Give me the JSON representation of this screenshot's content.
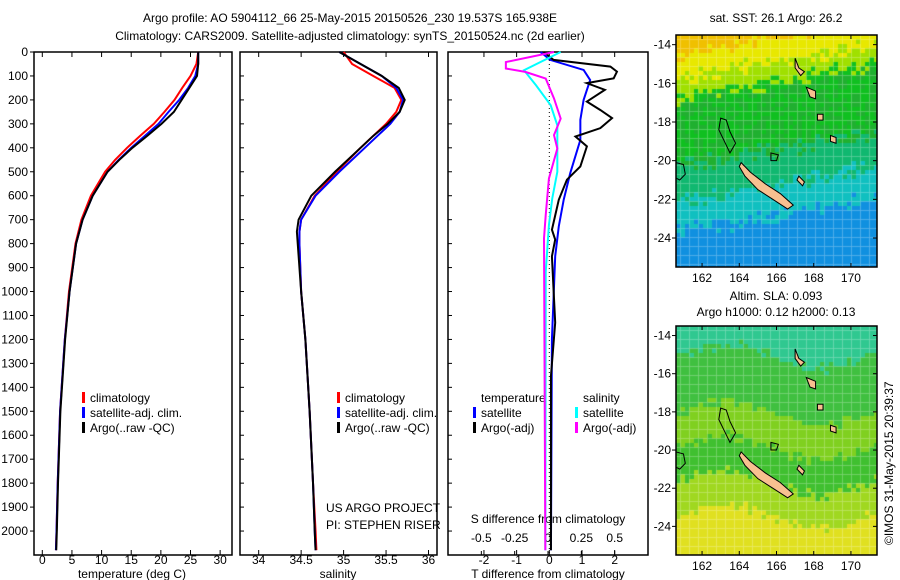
{
  "title": {
    "line1": "Argo profile: AO 5904112_66 25-May-2015 20150526_230 19.537S 165.938E",
    "line2": "Climatology: CARS2009. Satellite-adjusted climatology: synTS_20150524.nc (2d earlier)"
  },
  "credit": "©IMOS 31-May-2015 20:39:37",
  "project": {
    "line1": "US ARGO PROJECT",
    "line2": "PI: STEPHEN RISER"
  },
  "colors": {
    "climatology": "#ff0000",
    "satellite": "#0000ff",
    "argo": "#000000",
    "sal_sat": "#00ffff",
    "sal_argo": "#ff00ff"
  },
  "chart_data": [
    {
      "type": "line",
      "name": "temperature",
      "xlabel": "temperature (deg C)",
      "xlim": [
        -1.4,
        32
      ],
      "ylim": [
        0,
        2100
      ],
      "xticks": [
        0,
        5,
        10,
        15,
        20,
        25,
        30
      ],
      "yticks": [
        0,
        100,
        200,
        300,
        400,
        500,
        600,
        700,
        800,
        900,
        1000,
        1100,
        1200,
        1300,
        1400,
        1500,
        1600,
        1700,
        1800,
        1900,
        2000
      ],
      "legend": [
        "climatology",
        "satellite-adj. clim.",
        "Argo(..raw -QC)"
      ],
      "depth": [
        0,
        50,
        100,
        150,
        200,
        250,
        300,
        350,
        400,
        450,
        500,
        600,
        700,
        800,
        1000,
        1200,
        1500,
        1800,
        2000,
        2080
      ],
      "series": [
        {
          "name": "climatology",
          "values": [
            26.3,
            26.0,
            25.0,
            23.6,
            22.3,
            20.6,
            18.8,
            16.5,
            14.3,
            12.3,
            10.6,
            8.2,
            6.6,
            5.6,
            4.5,
            3.8,
            3.0,
            2.6,
            2.4,
            2.3
          ]
        },
        {
          "name": "satellite-adj. clim.",
          "values": [
            26.3,
            26.3,
            25.8,
            24.6,
            23.1,
            21.3,
            19.6,
            17.3,
            15.0,
            12.9,
            11.0,
            8.5,
            6.8,
            5.7,
            4.6,
            3.8,
            3.0,
            2.6,
            2.4,
            2.3
          ]
        },
        {
          "name": "Argo",
          "values": [
            26.3,
            26.3,
            26.1,
            24.8,
            23.5,
            22.2,
            20.1,
            17.7,
            15.2,
            13.0,
            11.0,
            8.5,
            6.8,
            5.7,
            4.6,
            3.85,
            3.05,
            2.65,
            2.45,
            2.35
          ]
        }
      ]
    },
    {
      "type": "line",
      "name": "salinity",
      "xlabel": "salinity",
      "xlim": [
        33.78,
        36.1
      ],
      "ylim": [
        0,
        2100
      ],
      "xticks": [
        34,
        34.5,
        35,
        35.5,
        36
      ],
      "legend": [
        "climatology",
        "satellite-adj. clim.",
        "Argo(..raw -QC)"
      ],
      "depth": [
        0,
        50,
        100,
        150,
        200,
        250,
        300,
        350,
        400,
        500,
        600,
        700,
        750,
        800,
        1000,
        1200,
        1500,
        1800,
        2000,
        2080
      ],
      "series": [
        {
          "name": "climatology",
          "values": [
            35.0,
            35.1,
            35.35,
            35.6,
            35.68,
            35.62,
            35.5,
            35.35,
            35.2,
            34.92,
            34.66,
            34.5,
            34.48,
            34.48,
            34.5,
            34.55,
            34.6,
            34.64,
            34.67,
            34.68
          ]
        },
        {
          "name": "satellite-adj. clim.",
          "values": [
            34.95,
            35.2,
            35.45,
            35.62,
            35.7,
            35.66,
            35.55,
            35.4,
            35.25,
            34.95,
            34.67,
            34.5,
            34.48,
            34.48,
            34.5,
            34.55,
            34.6,
            34.64,
            34.66,
            34.67
          ]
        },
        {
          "name": "Argo",
          "values": [
            34.95,
            35.2,
            35.45,
            35.65,
            35.72,
            35.66,
            35.52,
            35.35,
            35.2,
            34.9,
            34.62,
            34.47,
            34.45,
            34.46,
            34.5,
            34.55,
            34.6,
            34.64,
            34.66,
            34.67
          ]
        }
      ]
    },
    {
      "type": "line",
      "name": "difference",
      "xlabel": "T difference from climatology",
      "x2label": "S difference from climatology",
      "xlim": [
        -3.1,
        3.02
      ],
      "x2lim": [
        -0.75,
        0.75
      ],
      "ylim": [
        0,
        2100
      ],
      "xticks": [
        -2,
        -1,
        0,
        1,
        2
      ],
      "x2ticks": [
        "-0.5",
        "-0.25",
        "0",
        "0.25",
        "0.5"
      ],
      "legend": {
        "temperature": "temperature",
        "salinity": "salinity",
        "sat": "satellite",
        "argo": "Argo(-adj)"
      },
      "series": [
        {
          "name": "T satellite",
          "axis": "T",
          "depth": [
            0,
            33,
            75,
            117,
            200,
            283,
            367,
            506,
            617,
            728,
            853,
            1200,
            2080
          ],
          "values": [
            -0.27,
            0.03,
            1.05,
            1.25,
            1.05,
            0.95,
            0.95,
            0.64,
            0.44,
            0.29,
            0.18,
            0.08,
            0.05
          ]
        },
        {
          "name": "T Argo",
          "axis": "T",
          "depth": [
            0,
            33,
            61,
            82,
            110,
            130,
            158,
            207,
            242,
            276,
            318,
            353,
            394,
            478,
            533,
            617,
            742,
            783,
            853,
            1130,
            1353,
            2080
          ],
          "values": [
            -0.17,
            0.13,
            1.87,
            2.07,
            1.97,
            1.15,
            1.7,
            1.15,
            1.56,
            1.92,
            1.56,
            0.8,
            1.15,
            0.95,
            0.54,
            0.29,
            0.08,
            0.18,
            0.08,
            0.18,
            0.05,
            0.05
          ]
        },
        {
          "name": "S satellite",
          "axis": "S",
          "depth": [
            0,
            76,
            139,
            222,
            306,
            500,
            611,
            722,
            917,
            2080
          ],
          "values": [
            0.095,
            -0.18,
            -0.09,
            0.02,
            0.07,
            0.07,
            0.032,
            0.007,
            -0.017,
            -0.02
          ]
        },
        {
          "name": "S Argo",
          "axis": "S",
          "depth": [
            0,
            42,
            69,
            83,
            111,
            194,
            278,
            347,
            403,
            528,
            680,
            778,
            2080
          ],
          "values": [
            0.045,
            -0.316,
            -0.316,
            -0.17,
            -0.017,
            0.045,
            0.095,
            0.045,
            0.07,
            0.007,
            -0.017,
            -0.03,
            -0.02
          ]
        }
      ]
    },
    {
      "type": "heatmap",
      "name": "sst-map",
      "title": "sat. SST: 26.1 Argo: 26.2",
      "xlim": [
        160.6,
        171.4
      ],
      "ylim": [
        -25.5,
        -13.5
      ],
      "xticks": [
        162,
        164,
        166,
        168,
        170
      ],
      "yticks": [
        -14,
        -16,
        -18,
        -20,
        -22,
        -24
      ]
    },
    {
      "type": "heatmap",
      "name": "sla-map",
      "title1": "Altim. SLA: 0.093",
      "title2": "Argo h1000: 0.12 h2000: 0.13",
      "xlim": [
        160.6,
        171.4
      ],
      "ylim": [
        -25.5,
        -13.5
      ],
      "xticks": [
        162,
        164,
        166,
        168,
        170
      ],
      "yticks": [
        -14,
        -16,
        -18,
        -20,
        -22,
        -24
      ]
    }
  ],
  "coast": [
    {
      "land": true,
      "pts": [
        [
          164.1,
          -20.1
        ],
        [
          164.6,
          -20.6
        ],
        [
          165.4,
          -21.2
        ],
        [
          166.2,
          -21.7
        ],
        [
          166.9,
          -22.3
        ],
        [
          166.6,
          -22.5
        ],
        [
          165.8,
          -22.0
        ],
        [
          165.0,
          -21.5
        ],
        [
          164.3,
          -20.8
        ],
        [
          164.0,
          -20.3
        ]
      ]
    },
    {
      "land": true,
      "pts": [
        [
          167.0,
          -14.7
        ],
        [
          167.2,
          -15.2
        ],
        [
          167.5,
          -15.4
        ],
        [
          167.3,
          -15.6
        ],
        [
          167.0,
          -15.2
        ]
      ]
    },
    {
      "land": true,
      "pts": [
        [
          167.6,
          -16.2
        ],
        [
          168.1,
          -16.4
        ],
        [
          168.1,
          -16.8
        ],
        [
          167.8,
          -16.7
        ]
      ]
    },
    {
      "land": true,
      "pts": [
        [
          168.2,
          -17.6
        ],
        [
          168.5,
          -17.6
        ],
        [
          168.5,
          -17.9
        ],
        [
          168.2,
          -17.9
        ]
      ]
    },
    {
      "land": true,
      "pts": [
        [
          168.9,
          -18.7
        ],
        [
          169.2,
          -18.8
        ],
        [
          169.2,
          -19.1
        ],
        [
          168.9,
          -19.0
        ]
      ]
    },
    {
      "land": true,
      "pts": [
        [
          167.2,
          -20.8
        ],
        [
          167.5,
          -21.1
        ],
        [
          167.4,
          -21.3
        ],
        [
          167.1,
          -21.0
        ]
      ]
    },
    {
      "land": false,
      "pts": [
        [
          163.0,
          -17.8
        ],
        [
          163.3,
          -17.9
        ],
        [
          163.5,
          -18.5
        ],
        [
          163.8,
          -19.1
        ],
        [
          163.5,
          -19.6
        ],
        [
          163.2,
          -19.0
        ],
        [
          162.9,
          -18.4
        ]
      ]
    },
    {
      "land": false,
      "pts": [
        [
          165.7,
          -19.6
        ],
        [
          166.1,
          -19.7
        ],
        [
          166.0,
          -20.0
        ],
        [
          165.7,
          -20.0
        ]
      ]
    },
    {
      "land": false,
      "pts": [
        [
          160.6,
          -20.1
        ],
        [
          161.0,
          -20.2
        ],
        [
          161.1,
          -20.7
        ],
        [
          160.8,
          -21.0
        ],
        [
          160.6,
          -20.9
        ]
      ]
    }
  ]
}
